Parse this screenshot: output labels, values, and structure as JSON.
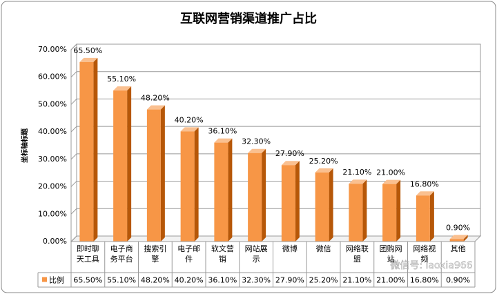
{
  "chart_data": {
    "type": "bar3d",
    "title": "互联网营销渠道推广占比",
    "y_axis_label": "坐标轴标题",
    "categories": [
      "即时聊天工具",
      "电子商务平台",
      "搜索引擎",
      "电子邮件",
      "软文营销",
      "网站展示",
      "微博",
      "微信",
      "网络联盟",
      "团购网站",
      "网络视频",
      "其他"
    ],
    "series": [
      {
        "name": "比例",
        "color": "#f79646",
        "values": [
          65.5,
          55.1,
          48.2,
          40.2,
          36.1,
          32.3,
          27.9,
          25.2,
          21.1,
          21.0,
          16.8,
          0.9
        ],
        "value_labels": [
          "65.50%",
          "55.10%",
          "48.20%",
          "40.20%",
          "36.10%",
          "32.30%",
          "27.90%",
          "25.20%",
          "21.10%",
          "21.00%",
          "16.80%",
          "0.90%"
        ]
      }
    ],
    "ylim": [
      0,
      70
    ],
    "yticks": [
      {
        "value": 0,
        "label": "0.00%"
      },
      {
        "value": 10,
        "label": "10.00%"
      },
      {
        "value": 20,
        "label": "20.00%"
      },
      {
        "value": 30,
        "label": "30.00%"
      },
      {
        "value": 40,
        "label": "40.00%"
      },
      {
        "value": 50,
        "label": "50.00%"
      },
      {
        "value": 60,
        "label": "60.00%"
      },
      {
        "value": 70,
        "label": "70.00%"
      }
    ],
    "grid": true,
    "data_table": true,
    "watermark": "微信号: laoxia966"
  }
}
